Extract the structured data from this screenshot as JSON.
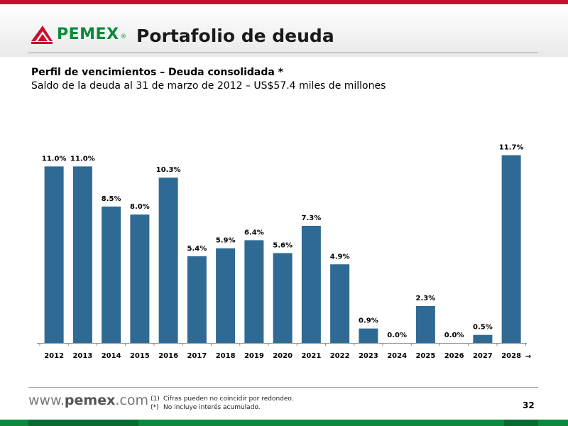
{
  "header": {
    "logo_text": "PEMEX",
    "registered_mark": "®",
    "title": "Portafolio de deuda"
  },
  "subtitle": {
    "line1": "Perfil de vencimientos – Deuda consolidada *",
    "line2": "Saldo de la deuda al 31 de marzo de 2012 – US$57.4 miles de millones"
  },
  "chart_data": {
    "type": "bar",
    "categories": [
      "2012",
      "2013",
      "2014",
      "2015",
      "2016",
      "2017",
      "2018",
      "2019",
      "2020",
      "2021",
      "2022",
      "2023",
      "2024",
      "2025",
      "2026",
      "2027",
      "2028"
    ],
    "values": [
      11.0,
      11.0,
      8.5,
      8.0,
      10.3,
      5.4,
      5.9,
      6.4,
      5.6,
      7.3,
      4.9,
      0.9,
      0.0,
      2.3,
      0.0,
      0.5,
      11.7
    ],
    "value_labels": [
      "11.0%",
      "11.0%",
      "8.5%",
      "8.0%",
      "10.3%",
      "5.4%",
      "5.9%",
      "6.4%",
      "5.6%",
      "7.3%",
      "4.9%",
      "0.9%",
      "0.0%",
      "2.3%",
      "0.0%",
      "0.5%",
      "11.7%"
    ],
    "color": "#2e6a93",
    "last_category_arrow": "→",
    "grid": false
  },
  "footer": {
    "website_prefix": "www.",
    "website_brand": "pemex",
    "website_suffix": ".com",
    "notes": [
      {
        "mark": "(1)",
        "text": "Cifras pueden no coincidir por redondeo."
      },
      {
        "mark": "(*)",
        "text": "No incluye interés acumulado."
      }
    ],
    "page_number": "32"
  }
}
